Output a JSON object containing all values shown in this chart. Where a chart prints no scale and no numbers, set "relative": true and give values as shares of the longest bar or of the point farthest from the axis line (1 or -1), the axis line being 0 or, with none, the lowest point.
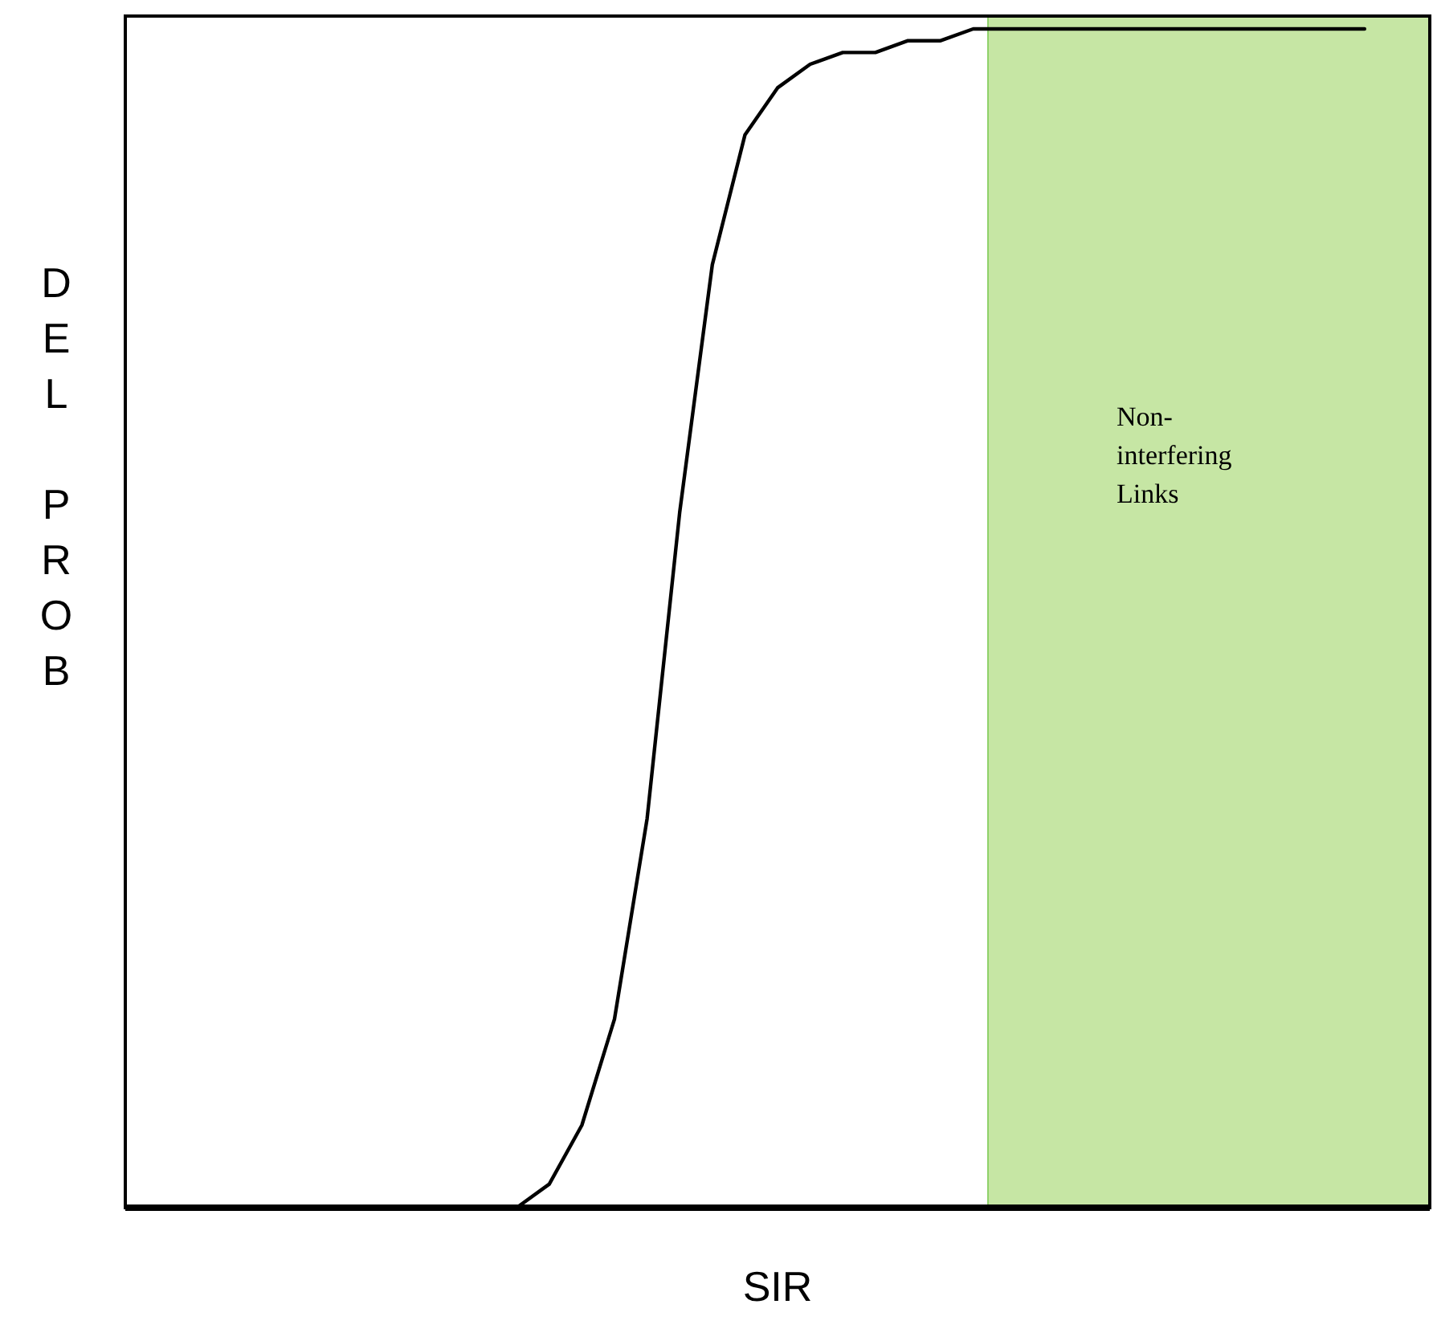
{
  "chart_data": {
    "type": "line",
    "relative": true,
    "xlabel": "SIR",
    "ylabel": "DEL PROB",
    "marker": "none",
    "line_style": "solid",
    "categories": [
      null,
      null,
      null,
      null,
      null,
      null,
      null,
      null,
      null,
      null,
      null,
      null,
      null,
      null,
      null,
      null,
      null,
      null,
      null,
      null,
      null,
      null,
      null,
      null,
      null,
      null,
      null,
      null,
      null,
      null,
      null,
      null,
      null,
      null,
      null,
      null,
      null,
      null,
      null,
      null,
      null
    ],
    "series": [
      {
        "color": "#000000",
        "values": [
          null,
          null,
          null,
          null,
          null,
          null,
          null,
          null,
          null,
          null,
          null,
          null,
          0,
          0.02,
          0.07,
          0.16,
          0.33,
          0.59,
          0.8,
          0.91,
          0.95,
          0.97,
          0.98,
          0.98,
          0.99,
          0.99,
          1,
          1,
          1,
          1,
          1,
          1,
          1,
          1,
          1,
          1,
          1,
          1,
          1,
          null,
          null
        ]
      }
    ],
    "annotations": [
      "Non-interfering Links"
    ]
  }
}
